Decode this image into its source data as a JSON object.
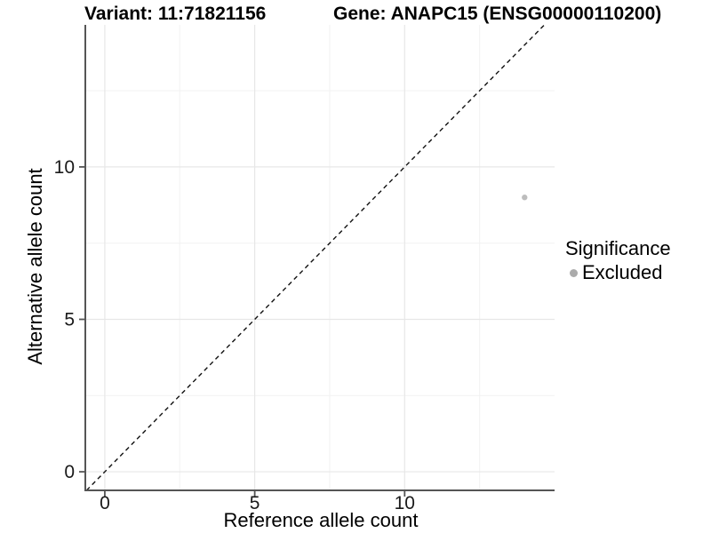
{
  "chart_data": {
    "type": "scatter",
    "titles": {
      "variant": "Variant: 11:71821156",
      "gene": "Gene: ANAPC15 (ENSG00000110200)"
    },
    "xlabel": "Reference allele count",
    "ylabel": "Alternative allele count",
    "xlim": [
      -0.65,
      15.0
    ],
    "ylim": [
      -0.61,
      14.66
    ],
    "x_ticks": [
      0,
      5,
      10
    ],
    "y_ticks": [
      0,
      5,
      10
    ],
    "x_minor_ticks": [
      2.5,
      7.5,
      12.5
    ],
    "y_minor_ticks": [
      2.5,
      7.5,
      12.5
    ],
    "grid": "major and minor gridlines",
    "reference_line": {
      "kind": "identity y=x",
      "style": "dashed",
      "color": "#111111"
    },
    "series": [
      {
        "name": "Excluded",
        "color": "#bdbdbd",
        "point_radius": 3.2,
        "points": [
          {
            "x": 14,
            "y": 9
          }
        ]
      }
    ],
    "legend": {
      "title": "Significance",
      "position": "right",
      "items": [
        {
          "label": "Excluded",
          "color": "#ababab"
        }
      ]
    },
    "colors": {
      "grid_major": "#e7e7e7",
      "grid_minor": "#f2f2f2",
      "axis_line": "#555555",
      "tick_mark": "#555555",
      "tick_label": "#1a1a1a"
    }
  }
}
